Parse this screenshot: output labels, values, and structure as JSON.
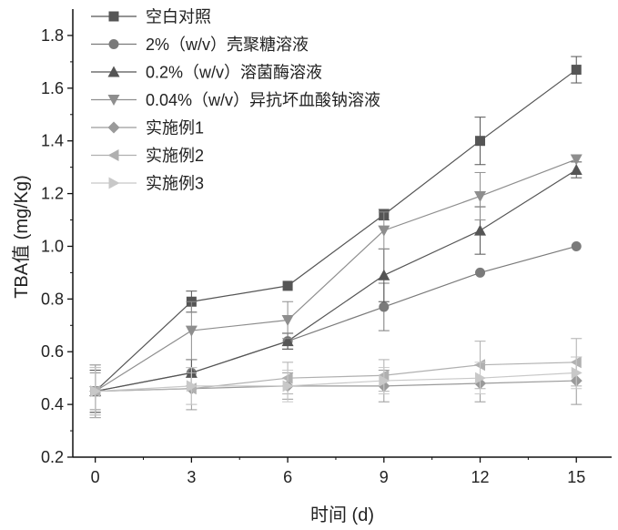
{
  "chart_data": {
    "type": "line",
    "title": "",
    "xlabel": "时间 (d)",
    "ylabel": "TBA值 (mg/Kg)",
    "x": [
      0,
      3,
      6,
      9,
      12,
      15
    ],
    "xticks": [
      "0",
      "3",
      "6",
      "9",
      "12",
      "15"
    ],
    "yticks": [
      "0.2",
      "0.4",
      "0.6",
      "0.8",
      "1.0",
      "1.2",
      "1.4",
      "1.6",
      "1.8"
    ],
    "xlim": [
      -0.7,
      16.1
    ],
    "ylim": [
      0.2,
      1.9
    ],
    "legend_position": "top-left",
    "grid": false,
    "series": [
      {
        "name": "空白对照",
        "marker": "square",
        "color": "#555555",
        "values": [
          0.45,
          0.79,
          0.85,
          1.12,
          1.4,
          1.67
        ],
        "errors": [
          0.1,
          0.04,
          0.0,
          0.02,
          0.09,
          0.05
        ]
      },
      {
        "name": "2%（w/v）壳聚糖溶液",
        "marker": "circle",
        "color": "#7a7a7a",
        "values": [
          0.45,
          0.52,
          0.64,
          0.77,
          0.9,
          1.0
        ],
        "errors": [
          0.08,
          0.05,
          0.03,
          0.09,
          0.0,
          0.0
        ]
      },
      {
        "name": "0.2%（w/v）溶菌酶溶液",
        "marker": "triangle-up",
        "color": "#555555",
        "values": [
          0.45,
          0.52,
          0.64,
          0.89,
          1.06,
          1.29
        ],
        "errors": [
          0.08,
          0.05,
          0.03,
          0.1,
          0.09,
          0.03
        ]
      },
      {
        "name": "0.04%（w/v）异抗坏血酸钠溶液",
        "marker": "triangle-down",
        "color": "#8e8e8e",
        "values": [
          0.45,
          0.68,
          0.72,
          1.06,
          1.19,
          1.33
        ],
        "errors": [
          0.07,
          0.11,
          0.07,
          0.07,
          0.09,
          0.0
        ]
      },
      {
        "name": "实施例1",
        "marker": "diamond",
        "color": "#9a9a9a",
        "values": [
          0.45,
          0.46,
          0.47,
          0.47,
          0.48,
          0.49
        ],
        "errors": [
          0.09,
          0.08,
          0.05,
          0.06,
          0.07,
          0.09
        ]
      },
      {
        "name": "实施例2",
        "marker": "triangle-left",
        "color": "#b0b0b0",
        "values": [
          0.45,
          0.46,
          0.5,
          0.51,
          0.55,
          0.56
        ],
        "errors": [
          0.1,
          0.06,
          0.06,
          0.06,
          0.09,
          0.09
        ]
      },
      {
        "name": "实施例3",
        "marker": "triangle-right",
        "color": "#c8c8c8",
        "values": [
          0.45,
          0.47,
          0.47,
          0.49,
          0.5,
          0.52
        ],
        "errors": [
          0.09,
          0.07,
          0.06,
          0.05,
          0.06,
          0.06
        ]
      }
    ]
  }
}
